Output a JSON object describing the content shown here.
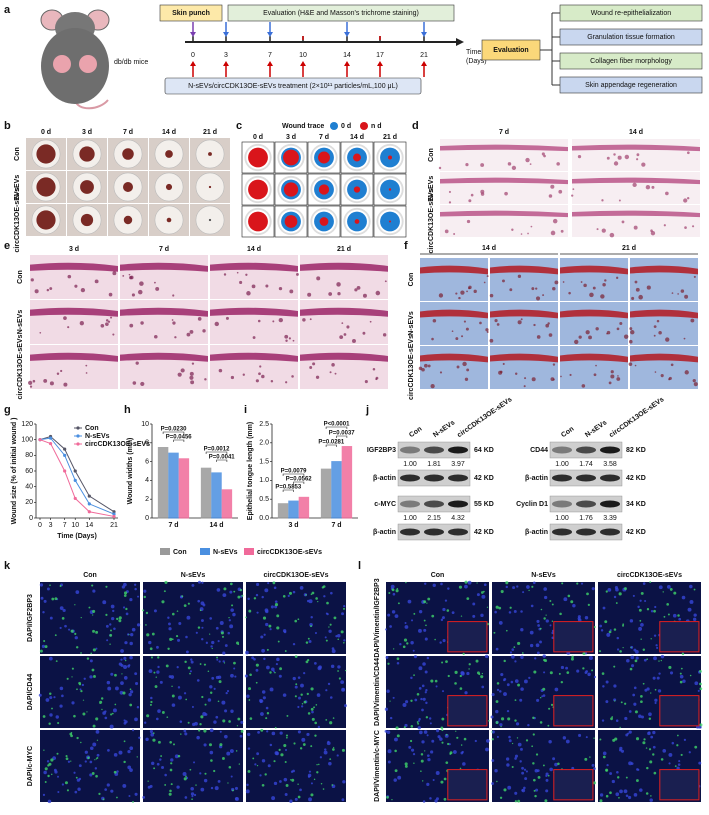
{
  "figure": {
    "a": {
      "label": "a",
      "mouse": "db/db mice",
      "skin_punch": "Skin punch",
      "evaluation_staining": "Evaluation (H&E and Masson's trichrome staining)",
      "days": [
        0,
        3,
        7,
        10,
        14,
        17,
        21
      ],
      "time": "Time",
      "time_unit": "(Days)",
      "treatment": "N-sEVs/circCDK13OE-sEVs treatment (2×10¹¹ particles/mL,100 μL)",
      "evaluation": "Evaluation",
      "outcomes": [
        "Wound re-epithelialization",
        "Granulation tissue formation",
        "Collagen fiber morphology",
        "Skin appendage regeneration"
      ]
    },
    "b": {
      "label": "b",
      "columns": [
        "0 d",
        "3 d",
        "7 d",
        "14 d",
        "21 d"
      ],
      "rows": [
        "Con",
        "N-sEVs",
        "circCDK13OE-sEVs"
      ]
    },
    "c": {
      "label": "c",
      "legend_title": "Wound trace",
      "legend": [
        "0 d",
        "n d"
      ],
      "columns": [
        "0 d",
        "3 d",
        "7 d",
        "14 d",
        "21 d"
      ]
    },
    "d": {
      "label": "d",
      "columns": [
        "7 d",
        "14 d"
      ],
      "rows": [
        "Con",
        "N-sEVs",
        "circCDK13OE-sEVs"
      ]
    },
    "e": {
      "label": "e",
      "columns": [
        "3 d",
        "7 d",
        "14 d",
        "21 d"
      ],
      "rows": [
        "Con",
        "N-sEVs",
        "circCDK13OE-sEVs"
      ]
    },
    "f": {
      "label": "f",
      "columns": [
        "14 d",
        "21 d"
      ],
      "rows": [
        "Con",
        "N-sEVs",
        "circCDK13OE-sEVs"
      ]
    },
    "j": {
      "label": "j",
      "blots": [
        {
          "columns": [
            "Con",
            "N-sEVs",
            "circCDK13OE-sEVs"
          ],
          "proteins": [
            {
              "name": "IGF2BP3",
              "size": "64 KD",
              "ratios": [
                "1.00",
                "1.81",
                "3.97"
              ]
            },
            {
              "name": "β-actin",
              "size": "42 KD"
            },
            {
              "name": "c-MYC",
              "size": "55 KD",
              "ratios": [
                "1.00",
                "2.15",
                "4.32"
              ]
            },
            {
              "name": "β-actin",
              "size": "42 KD"
            }
          ]
        },
        {
          "columns": [
            "Con",
            "N-sEVs",
            "circCDK13OE-sEVs"
          ],
          "proteins": [
            {
              "name": "CD44",
              "size": "82 KD",
              "ratios": [
                "1.00",
                "1.74",
                "3.58"
              ]
            },
            {
              "name": "β-actin",
              "size": "42 KD"
            },
            {
              "name": "Cyclin D1",
              "size": "34 KD",
              "ratios": [
                "1.00",
                "1.76",
                "3.39"
              ]
            },
            {
              "name": "β-actin",
              "size": "42 KD"
            }
          ]
        }
      ]
    },
    "k": {
      "label": "k",
      "columns": [
        "Con",
        "N-sEVs",
        "circCDK13OE-sEVs"
      ],
      "rows": [
        "DAPI/IGF2BP3",
        "DAPI/CD44",
        "DAPI/c-MYC"
      ]
    },
    "l": {
      "label": "l",
      "columns": [
        "Con",
        "N-sEVs",
        "circCDK13OE-sEVs"
      ],
      "rows": [
        "DAPI/Vimentin/IGF2BP3",
        "DAPI/Vimentin/CD44",
        "DAPI/Vimentin/c-MYC"
      ]
    }
  },
  "chart_data": [
    {
      "panel": "g",
      "type": "line",
      "y_label": "Wound size (% of initial wound )",
      "x_label": "Time (Days)",
      "x": [
        0,
        3,
        7,
        10,
        14,
        21
      ],
      "xlim": [
        0,
        21
      ],
      "xticks": [
        0,
        3,
        7,
        10,
        14,
        21
      ],
      "ylim": [
        0,
        120
      ],
      "yticks": [
        0,
        20,
        40,
        60,
        80,
        100,
        120
      ],
      "legend": "upper right",
      "series": [
        {
          "name": "Con",
          "color": "#555566",
          "values": [
            100,
            104,
            88,
            60,
            28,
            8
          ]
        },
        {
          "name": "N-sEVs",
          "color": "#4a8fe0",
          "values": [
            100,
            102,
            80,
            48,
            18,
            5
          ]
        },
        {
          "name": "circCDK13OE-sEVs",
          "color": "#f06a9a",
          "values": [
            100,
            95,
            60,
            25,
            8,
            2
          ]
        }
      ]
    },
    {
      "panel": "h",
      "type": "bar",
      "y_label": "Wound widths (mm)",
      "categories": [
        "7 d",
        "14 d"
      ],
      "ylim": [
        0,
        10
      ],
      "yticks": [
        0,
        2,
        4,
        6,
        8,
        10
      ],
      "series": [
        {
          "name": "Con",
          "color": "#9a9a9a",
          "values": [
            7.5,
            5.3
          ]
        },
        {
          "name": "N-sEVs",
          "color": "#4a8fe0",
          "values": [
            6.9,
            4.8
          ]
        },
        {
          "name": "circCDK13OE-sEVs",
          "color": "#f06a9a",
          "values": [
            6.3,
            3.0
          ]
        }
      ],
      "annotations": [
        "P=0.0230",
        "P=0.0456",
        "P=0.0012",
        "P=0.0041"
      ]
    },
    {
      "panel": "i",
      "type": "bar",
      "y_label": "Epithelial tongue length (mm)",
      "categories": [
        "3 d",
        "7 d"
      ],
      "ylim": [
        0,
        2.5
      ],
      "yticks": [
        {
          "value": 0,
          "label": "0.0"
        },
        {
          "value": 0.5,
          "label": "0.5"
        },
        {
          "value": 1,
          "label": "1.0"
        },
        {
          "value": 1.5,
          "label": "1.5"
        },
        {
          "value": 2,
          "label": "2.0"
        },
        {
          "value": 2.5,
          "label": "2.5"
        }
      ],
      "series": [
        {
          "color": "#9a9a9a",
          "values": [
            0.38,
            1.3
          ]
        },
        {
          "color": "#4a8fe0",
          "values": [
            0.45,
            1.5
          ]
        },
        {
          "color": "#f06a9a",
          "values": [
            0.55,
            1.9
          ]
        }
      ],
      "annotations": [
        "P<0.0001",
        "P=0.0037",
        "P=0.0281",
        "P=0.0079",
        "P=0.0562",
        "P=0.5853"
      ]
    }
  ]
}
